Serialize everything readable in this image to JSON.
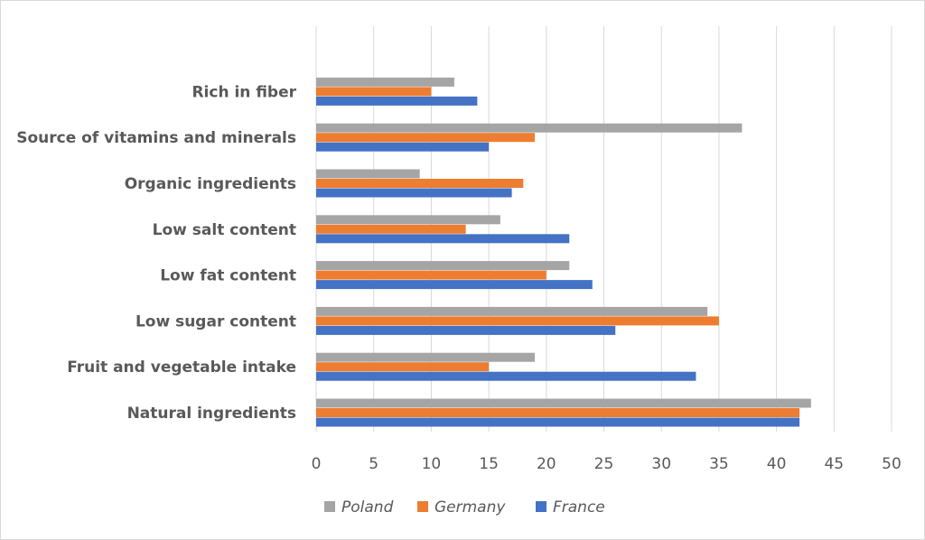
{
  "chart_data": {
    "type": "bar",
    "orientation": "horizontal",
    "categories": [
      "Natural ingredients",
      "Fruit and vegetable intake",
      "Low sugar content",
      "Low fat content",
      "Low salt content",
      "Organic ingredients",
      "Source of vitamins and minerals",
      "Rich in fiber"
    ],
    "series": [
      {
        "name": "Poland",
        "color": "#a5a5a5",
        "values": [
          43,
          19,
          34,
          22,
          16,
          9,
          37,
          12
        ]
      },
      {
        "name": "Germany",
        "color": "#ed7d31",
        "values": [
          42,
          15,
          35,
          20,
          13,
          18,
          19,
          10
        ]
      },
      {
        "name": "France",
        "color": "#4472c4",
        "values": [
          42,
          33,
          26,
          24,
          22,
          17,
          15,
          14
        ]
      }
    ],
    "xlim": [
      0,
      50
    ],
    "xticks": [
      "0",
      "5",
      "10",
      "15",
      "20",
      "25",
      "30",
      "35",
      "40",
      "45",
      "50"
    ],
    "grid": "vertical",
    "legend_position": "bottom"
  }
}
